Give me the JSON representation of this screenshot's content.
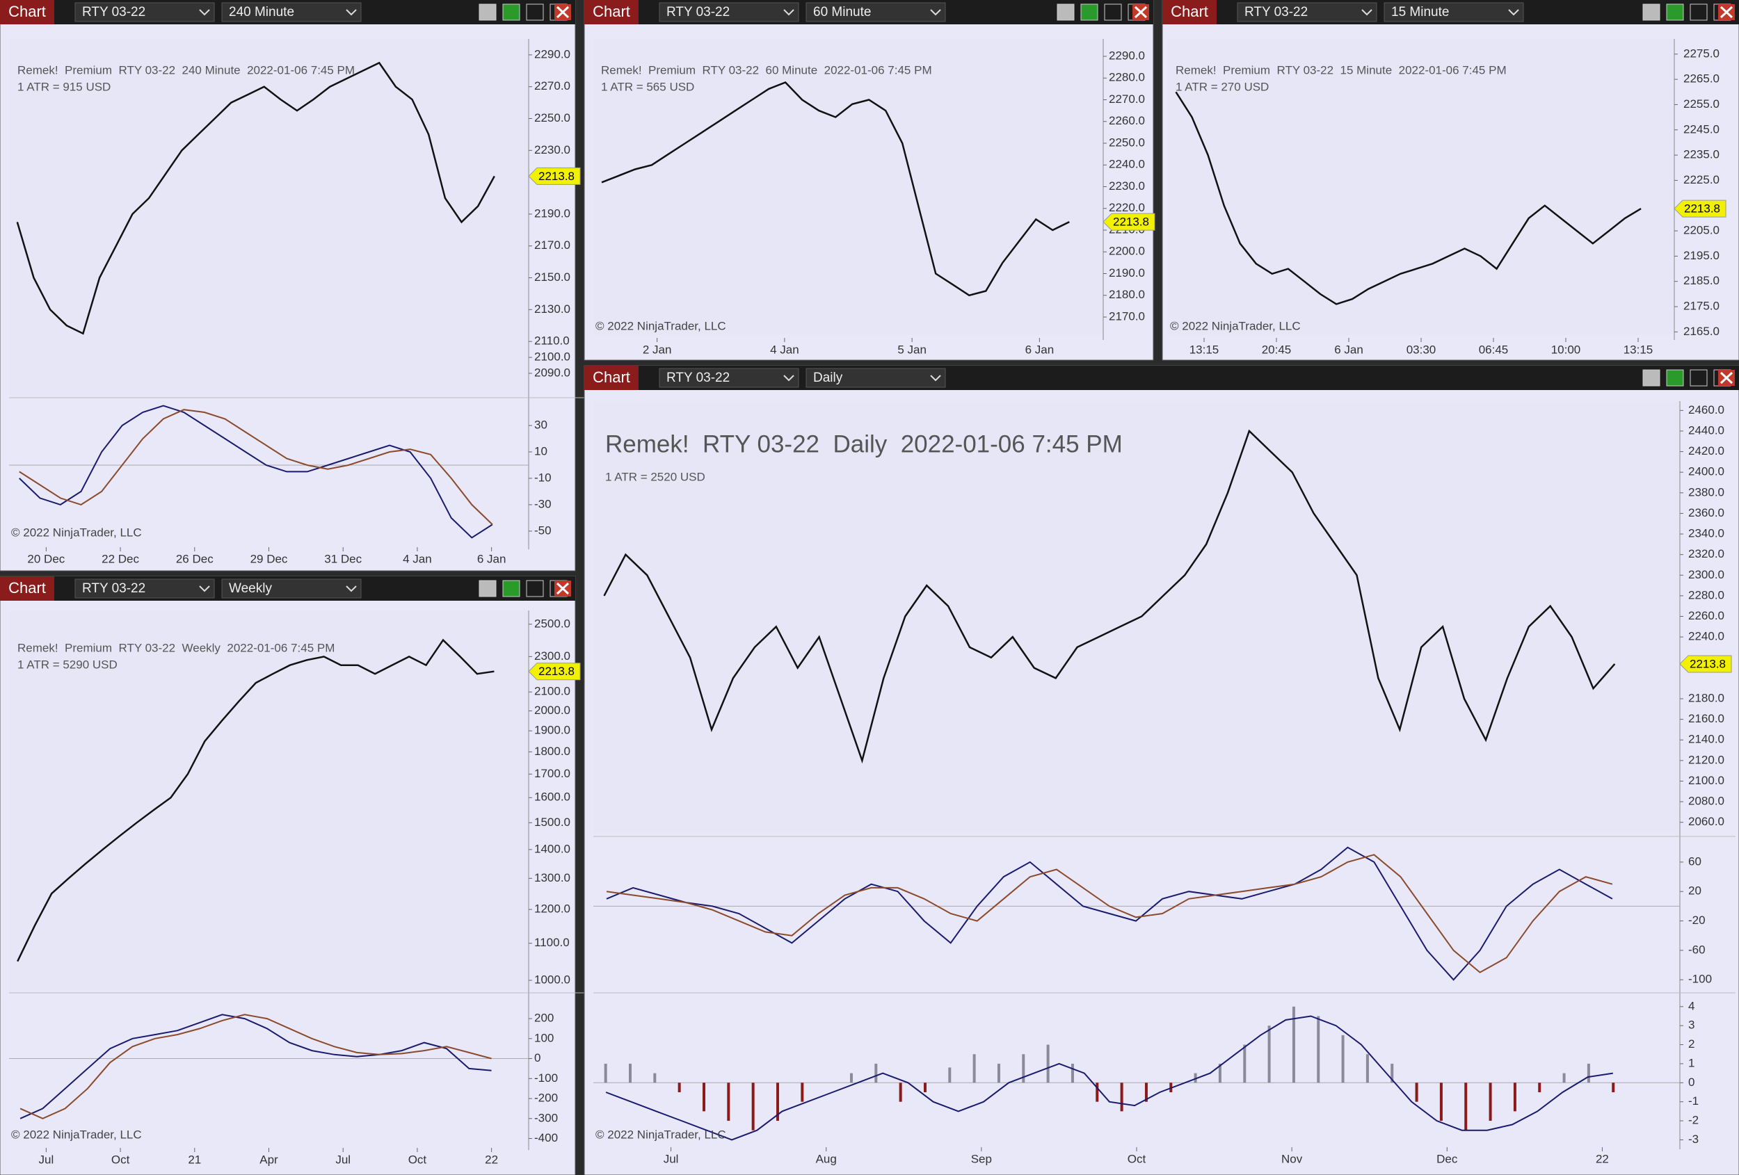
{
  "windows": [
    {
      "toolbar": {
        "label": "Chart",
        "instrument": "RTY 03-22",
        "interval": "240 Minute"
      },
      "title": "Remek!  Premium  RTY 03-22  240 Minute  2022-01-06 7:45 PM",
      "atr": "1 ATR = 915 USD",
      "copyright": "© 2022 NinjaTrader, LLC",
      "x_labels": [
        "20 Dec",
        "22 Dec",
        "26 Dec",
        "29 Dec",
        "31 Dec",
        "4 Jan",
        "6 Jan"
      ],
      "price": {
        "ylim": [
          2076,
          2300
        ],
        "log": false,
        "price_tag": 2213.8,
        "yticks": [
          {
            "value": 2290,
            "label": "2290.0"
          },
          {
            "value": 2270,
            "label": "2270.0"
          },
          {
            "value": 2250,
            "label": "2250.0"
          },
          {
            "value": 2230,
            "label": "2230.0"
          },
          {
            "value": 2190,
            "label": "2190.0"
          },
          {
            "value": 2170,
            "label": "2170.0"
          },
          {
            "value": 2150,
            "label": "2150.0"
          },
          {
            "value": 2130,
            "label": "2130.0"
          },
          {
            "value": 2110,
            "label": "2110.0"
          },
          {
            "value": 2100,
            "label": "2100.0"
          },
          {
            "value": 2090,
            "label": "2090.0"
          }
        ],
        "values": [
          2185,
          2150,
          2130,
          2120,
          2115,
          2150,
          2170,
          2190,
          2200,
          2215,
          2230,
          2240,
          2250,
          2260,
          2265,
          2270,
          2262,
          2255,
          2262,
          2270,
          2275,
          2280,
          2285,
          2270,
          2262,
          2240,
          2200,
          2185,
          2195,
          2213.8
        ]
      },
      "oscillator": {
        "ylim": [
          -59,
          50
        ],
        "yticks": [
          30,
          10,
          -10,
          -30,
          -50
        ],
        "series": [
          {
            "color": "#1a1a6e",
            "values": [
              -10,
              -25,
              -30,
              -20,
              10,
              30,
              40,
              45,
              40,
              30,
              20,
              10,
              0,
              -5,
              -5,
              0,
              5,
              10,
              15,
              10,
              -10,
              -40,
              -55,
              -45
            ]
          },
          {
            "color": "#8b4a2b",
            "values": [
              -5,
              -15,
              -25,
              -30,
              -20,
              0,
              20,
              35,
              42,
              40,
              35,
              25,
              15,
              5,
              0,
              -3,
              0,
              5,
              10,
              12,
              8,
              -10,
              -30,
              -45
            ]
          }
        ]
      }
    },
    {
      "toolbar": {
        "label": "Chart",
        "instrument": "RTY 03-22",
        "interval": "60 Minute"
      },
      "title": "Remek!  Premium  RTY 03-22  60 Minute  2022-01-06 7:45 PM",
      "atr": "1 ATR = 565 USD",
      "copyright": "© 2022 NinjaTrader, LLC",
      "x_labels": [
        "2 Jan",
        "4 Jan",
        "5 Jan",
        "6 Jan"
      ],
      "price": {
        "ylim": [
          2162,
          2298
        ],
        "log": false,
        "price_tag": 2213.8,
        "yticks": [
          {
            "value": 2290,
            "label": "2290.0"
          },
          {
            "value": 2280,
            "label": "2280.0"
          },
          {
            "value": 2270,
            "label": "2270.0"
          },
          {
            "value": 2260,
            "label": "2260.0"
          },
          {
            "value": 2250,
            "label": "2250.0"
          },
          {
            "value": 2240,
            "label": "2240.0"
          },
          {
            "value": 2230,
            "label": "2230.0"
          },
          {
            "value": 2220,
            "label": "2220.0"
          },
          {
            "value": 2210,
            "label": "2210.0"
          },
          {
            "value": 2200,
            "label": "2200.0"
          },
          {
            "value": 2190,
            "label": "2190.0"
          },
          {
            "value": 2180,
            "label": "2180.0"
          },
          {
            "value": 2170,
            "label": "2170.0"
          }
        ],
        "values": [
          2232,
          2235,
          2238,
          2240,
          2245,
          2250,
          2255,
          2260,
          2265,
          2270,
          2275,
          2278,
          2270,
          2265,
          2262,
          2268,
          2270,
          2265,
          2250,
          2220,
          2190,
          2185,
          2180,
          2182,
          2195,
          2205,
          2215,
          2210,
          2213.8
        ]
      }
    },
    {
      "toolbar": {
        "label": "Chart",
        "instrument": "RTY 03-22",
        "interval": "15 Minute"
      },
      "title": "Remek!  Premium  RTY 03-22  15 Minute  2022-01-06 7:45 PM",
      "atr": "1 ATR = 270 USD",
      "copyright": "© 2022 NinjaTrader, LLC",
      "x_labels": [
        "13:15",
        "20:45",
        "6 Jan",
        "03:30",
        "06:45",
        "10:00",
        "13:15"
      ],
      "price": {
        "ylim": [
          2164,
          2281
        ],
        "log": false,
        "price_tag": 2213.8,
        "yticks": [
          {
            "value": 2275,
            "label": "2275.0"
          },
          {
            "value": 2265,
            "label": "2265.0"
          },
          {
            "value": 2255,
            "label": "2255.0"
          },
          {
            "value": 2245,
            "label": "2245.0"
          },
          {
            "value": 2235,
            "label": "2235.0"
          },
          {
            "value": 2225,
            "label": "2225.0"
          },
          {
            "value": 2205,
            "label": "2205.0"
          },
          {
            "value": 2195,
            "label": "2195.0"
          },
          {
            "value": 2185,
            "label": "2185.0"
          },
          {
            "value": 2175,
            "label": "2175.0"
          },
          {
            "value": 2165,
            "label": "2165.0"
          }
        ],
        "values": [
          2260,
          2250,
          2235,
          2215,
          2200,
          2192,
          2188,
          2190,
          2185,
          2180,
          2176,
          2178,
          2182,
          2185,
          2188,
          2190,
          2192,
          2195,
          2198,
          2195,
          2190,
          2200,
          2210,
          2215,
          2210,
          2205,
          2200,
          2205,
          2210,
          2213.8
        ]
      }
    },
    {
      "toolbar": {
        "label": "Chart",
        "instrument": "RTY 03-22",
        "interval": "Weekly"
      },
      "title": "Remek!  Premium  RTY 03-22  Weekly  2022-01-06 7:45 PM",
      "atr": "1 ATR = 5290 USD",
      "copyright": "© 2022 NinjaTrader, LLC",
      "x_labels": [
        "Jul",
        "Oct",
        "21",
        "Apr",
        "Jul",
        "Oct",
        "22"
      ],
      "price": {
        "ylim": [
          970,
          2590
        ],
        "log": true,
        "price_tag": 2213.8,
        "yticks": [
          {
            "value": 2500,
            "label": "2500.0"
          },
          {
            "value": 2300,
            "label": "2300.0"
          },
          {
            "value": 2100,
            "label": "2100.0"
          },
          {
            "value": 2000,
            "label": "2000.0"
          },
          {
            "value": 1900,
            "label": "1900.0"
          },
          {
            "value": 1800,
            "label": "1800.0"
          },
          {
            "value": 1700,
            "label": "1700.0"
          },
          {
            "value": 1600,
            "label": "1600.0"
          },
          {
            "value": 1500,
            "label": "1500.0"
          },
          {
            "value": 1400,
            "label": "1400.0"
          },
          {
            "value": 1300,
            "label": "1300.0"
          },
          {
            "value": 1200,
            "label": "1200.0"
          },
          {
            "value": 1100,
            "label": "1100.0"
          },
          {
            "value": 1000,
            "label": "1000.0"
          }
        ],
        "values": [
          1050,
          1150,
          1250,
          1300,
          1350,
          1400,
          1450,
          1500,
          1550,
          1600,
          1700,
          1850,
          1950,
          2050,
          2150,
          2200,
          2250,
          2280,
          2300,
          2250,
          2250,
          2200,
          2250,
          2300,
          2250,
          2400,
          2300,
          2200,
          2213.8
        ]
      },
      "oscillator": {
        "ylim": [
          -433,
          322
        ],
        "yticks": [
          200,
          100,
          0,
          -100,
          -200,
          -300,
          -400
        ],
        "series": [
          {
            "color": "#1a1a6e",
            "values": [
              -300,
              -250,
              -150,
              -50,
              50,
              100,
              120,
              140,
              180,
              220,
              200,
              150,
              80,
              40,
              20,
              10,
              20,
              40,
              80,
              50,
              -50,
              -60
            ]
          },
          {
            "color": "#8b4a2b",
            "values": [
              -250,
              -300,
              -250,
              -150,
              -20,
              60,
              100,
              120,
              150,
              190,
              220,
              200,
              150,
              100,
              60,
              30,
              20,
              25,
              40,
              60,
              30,
              0
            ]
          }
        ]
      }
    },
    {
      "toolbar": {
        "label": "Chart",
        "instrument": "RTY 03-22",
        "interval": "Daily"
      },
      "title": "Remek!  RTY 03-22  Daily  2022-01-06 7:45 PM",
      "atr": "1 ATR = 2520 USD",
      "copyright": "© 2022 NinjaTrader, LLC",
      "x_labels": [
        "Jul",
        "Aug",
        "Sep",
        "Oct",
        "Nov",
        "Dec",
        "22"
      ],
      "price": {
        "ylim": [
          2049,
          2469
        ],
        "log": false,
        "price_tag": 2213.8,
        "yticks": [
          {
            "value": 2460,
            "label": "2460.0"
          },
          {
            "value": 2440,
            "label": "2440.0"
          },
          {
            "value": 2420,
            "label": "2420.0"
          },
          {
            "value": 2400,
            "label": "2400.0"
          },
          {
            "value": 2380,
            "label": "2380.0"
          },
          {
            "value": 2360,
            "label": "2360.0"
          },
          {
            "value": 2340,
            "label": "2340.0"
          },
          {
            "value": 2320,
            "label": "2320.0"
          },
          {
            "value": 2300,
            "label": "2300.0"
          },
          {
            "value": 2280,
            "label": "2280.0"
          },
          {
            "value": 2260,
            "label": "2260.0"
          },
          {
            "value": 2240,
            "label": "2240.0"
          },
          {
            "value": 2180,
            "label": "2180.0"
          },
          {
            "value": 2160,
            "label": "2160.0"
          },
          {
            "value": 2140,
            "label": "2140.0"
          },
          {
            "value": 2120,
            "label": "2120.0"
          },
          {
            "value": 2100,
            "label": "2100.0"
          },
          {
            "value": 2080,
            "label": "2080.0"
          },
          {
            "value": 2060,
            "label": "2060.0"
          }
        ],
        "values": [
          2280,
          2320,
          2300,
          2260,
          2220,
          2150,
          2200,
          2230,
          2250,
          2210,
          2240,
          2180,
          2120,
          2200,
          2260,
          2290,
          2270,
          2230,
          2220,
          2240,
          2210,
          2200,
          2230,
          2240,
          2250,
          2260,
          2280,
          2300,
          2330,
          2380,
          2440,
          2420,
          2400,
          2360,
          2330,
          2300,
          2200,
          2150,
          2230,
          2250,
          2180,
          2140,
          2200,
          2250,
          2270,
          2240,
          2190,
          2213.8
        ]
      },
      "oscillator": {
        "ylim": [
          -114,
          93
        ],
        "yticks": [
          60,
          20,
          -20,
          -60,
          -100
        ],
        "series": [
          {
            "color": "#1a1a6e",
            "values": [
              10,
              25,
              15,
              5,
              0,
              -10,
              -30,
              -50,
              -20,
              10,
              30,
              20,
              -20,
              -50,
              0,
              40,
              60,
              30,
              0,
              -10,
              -20,
              10,
              20,
              15,
              10,
              20,
              30,
              50,
              80,
              60,
              0,
              -60,
              -100,
              -60,
              0,
              30,
              50,
              30,
              10
            ]
          },
          {
            "color": "#8b4a2b",
            "values": [
              20,
              15,
              10,
              5,
              -5,
              -20,
              -35,
              -40,
              -10,
              15,
              25,
              25,
              10,
              -10,
              -20,
              10,
              40,
              50,
              25,
              0,
              -15,
              -10,
              10,
              15,
              20,
              25,
              30,
              40,
              60,
              70,
              40,
              -10,
              -60,
              -90,
              -70,
              -20,
              20,
              40,
              30
            ]
          }
        ]
      },
      "histogram": {
        "ylim": [
          -3.35,
          4.65
        ],
        "yticks": [
          4,
          3,
          2,
          1,
          0,
          -1,
          -2,
          -3
        ],
        "values": [
          1,
          1,
          0.5,
          -0.5,
          -1.5,
          -2,
          -2.5,
          -2,
          -1,
          0,
          0.5,
          1,
          -1,
          -0.5,
          0.8,
          1.5,
          1,
          1.5,
          2,
          1,
          -1,
          -1.5,
          -1,
          -0.5,
          0.5,
          1,
          2,
          3,
          4,
          3.5,
          2.5,
          1.5,
          1,
          -1,
          -2,
          -2.5,
          -2,
          -1.5,
          -0.5,
          0.5,
          1,
          -0.5
        ],
        "line": {
          "color": "#1a1a6e",
          "values": [
            -0.5,
            -1,
            -1.5,
            -2,
            -2.5,
            -3,
            -2.5,
            -1.5,
            -1,
            -0.5,
            0,
            0.5,
            0,
            -1,
            -1.5,
            -1,
            0,
            0.5,
            1,
            0.5,
            -1,
            -1.2,
            -0.5,
            0,
            0.5,
            1.5,
            2.5,
            3.3,
            3.5,
            3,
            2,
            0.5,
            -1,
            -2,
            -2.5,
            -2.5,
            -2.2,
            -1.5,
            -0.5,
            0.3,
            0.5
          ]
        }
      }
    }
  ]
}
